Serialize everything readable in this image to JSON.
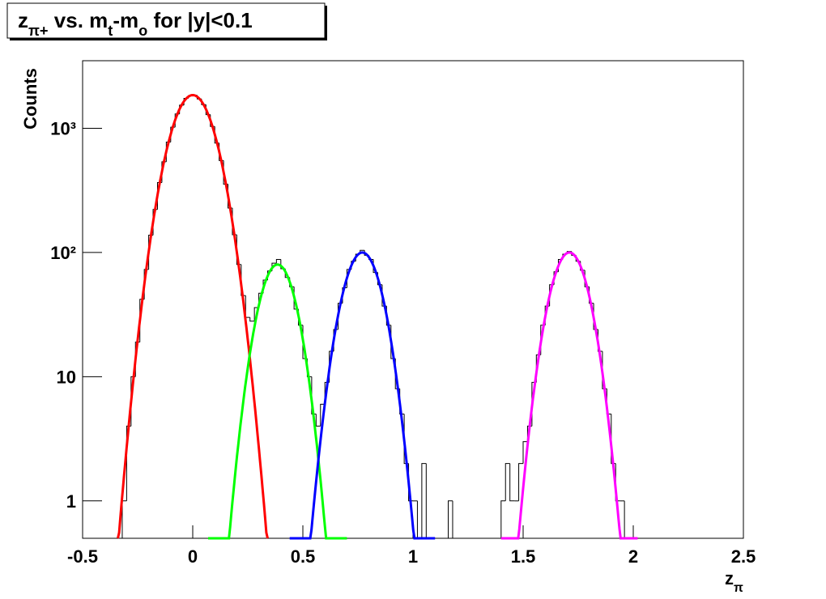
{
  "chart_data": {
    "type": "histogram",
    "title": [
      {
        "text": "z"
      },
      {
        "text": "π+",
        "sub": true
      },
      {
        "text": " vs. m"
      },
      {
        "text": "t",
        "sub": true
      },
      {
        "text": "-m"
      },
      {
        "text": "o",
        "sub": true
      },
      {
        "text": " for |y|<0.1"
      }
    ],
    "xlabel": [
      {
        "text": "z"
      },
      {
        "text": "π",
        "sub": true
      }
    ],
    "ylabel": "Counts",
    "color": "#000000",
    "log_y": true,
    "xlim": [
      -0.5,
      2.5
    ],
    "ylim": [
      0.5,
      3500
    ],
    "xticks": [
      -0.5,
      0,
      0.5,
      1,
      1.5,
      2,
      2.5
    ],
    "yticks": [
      1,
      10,
      {
        "value": 100,
        "label": "10²"
      },
      {
        "value": 1000,
        "label": "10³"
      }
    ],
    "bins": [
      -0.5,
      -0.48,
      -0.46,
      -0.44,
      -0.42,
      -0.4,
      -0.38,
      -0.36,
      -0.34,
      -0.32,
      -0.3,
      -0.28,
      -0.26,
      -0.24,
      -0.22,
      -0.2,
      -0.18,
      -0.16,
      -0.14,
      -0.12,
      -0.1,
      -0.08,
      -0.06,
      -0.04,
      -0.02,
      0,
      0.02,
      0.04,
      0.06,
      0.08,
      0.1,
      0.12,
      0.14,
      0.16,
      0.18,
      0.2,
      0.22,
      0.24,
      0.26,
      0.28,
      0.3,
      0.32,
      0.34,
      0.36,
      0.38,
      0.4,
      0.42,
      0.44,
      0.46,
      0.48,
      0.5,
      0.52,
      0.54,
      0.56,
      0.58,
      0.6,
      0.62,
      0.64,
      0.66,
      0.68,
      0.7,
      0.72,
      0.74,
      0.76,
      0.78,
      0.8,
      0.82,
      0.84,
      0.86,
      0.88,
      0.9,
      0.92,
      0.94,
      0.96,
      0.98,
      1,
      1.02,
      1.04,
      1.06,
      1.08,
      1.1,
      1.12,
      1.14,
      1.16,
      1.18,
      1.2,
      1.22,
      1.24,
      1.26,
      1.28,
      1.3,
      1.32,
      1.34,
      1.36,
      1.38,
      1.4,
      1.42,
      1.44,
      1.46,
      1.48,
      1.5,
      1.52,
      1.54,
      1.56,
      1.58,
      1.6,
      1.62,
      1.64,
      1.66,
      1.68,
      1.7,
      1.72,
      1.74,
      1.76,
      1.78,
      1.8,
      1.82,
      1.84,
      1.86,
      1.88,
      1.9,
      1.92,
      1.94,
      1.96,
      1.98,
      2,
      2.02,
      2.04,
      2.06,
      2.08,
      2.1,
      2.12,
      2.14,
      2.16,
      2.18,
      2.2,
      2.22,
      2.24,
      2.26,
      2.28,
      2.3,
      2.32,
      2.34,
      2.36,
      2.38,
      2.4,
      2.42,
      2.44,
      2.46,
      2.48,
      2.5
    ],
    "values": [
      0,
      0,
      0,
      0,
      0,
      0,
      0,
      0,
      0,
      1,
      4,
      10,
      19,
      42,
      73,
      138,
      222,
      366,
      537,
      775,
      1021,
      1305,
      1536,
      1741,
      1829,
      1845,
      1722,
      1550,
      1289,
      1035,
      760,
      550,
      355,
      228,
      139,
      80,
      45,
      30,
      28,
      36,
      47,
      60,
      71,
      82,
      88,
      74,
      63,
      53,
      35,
      26,
      14,
      10,
      5,
      4,
      6,
      9,
      16,
      24,
      39,
      52,
      73,
      85,
      97,
      104,
      95,
      88,
      69,
      55,
      37,
      26,
      14,
      8,
      5,
      2,
      1,
      1,
      0,
      2,
      0,
      0,
      0,
      0,
      0,
      1,
      0,
      0,
      0,
      0,
      0,
      0,
      0,
      0,
      0,
      0,
      0,
      1,
      2,
      1,
      1,
      2,
      3,
      4,
      9,
      15,
      26,
      37,
      55,
      70,
      88,
      97,
      102,
      95,
      85,
      72,
      53,
      39,
      24,
      16,
      8,
      5,
      2,
      1,
      1,
      0,
      0,
      0,
      0,
      0,
      0,
      0,
      0,
      0,
      0,
      0,
      0,
      0,
      0,
      0,
      0,
      0,
      0,
      0,
      0,
      0,
      0,
      0,
      0,
      0,
      0,
      0
    ],
    "fits": [
      {
        "color": "#ff0000",
        "amplitude": 1850,
        "mean": 0,
        "sigma": 0.083,
        "range": [
          -0.34,
          0.34
        ]
      },
      {
        "color": "#00ff00",
        "amplitude": 80,
        "mean": 0.385,
        "sigma": 0.069,
        "range": [
          0.07,
          0.7
        ]
      },
      {
        "color": "#0000ff",
        "amplitude": 100,
        "mean": 0.77,
        "sigma": 0.072,
        "range": [
          0.44,
          1.1
        ]
      },
      {
        "color": "#ff00ff",
        "amplitude": 100,
        "mean": 1.71,
        "sigma": 0.071,
        "range": [
          1.4,
          2.02
        ]
      }
    ]
  }
}
